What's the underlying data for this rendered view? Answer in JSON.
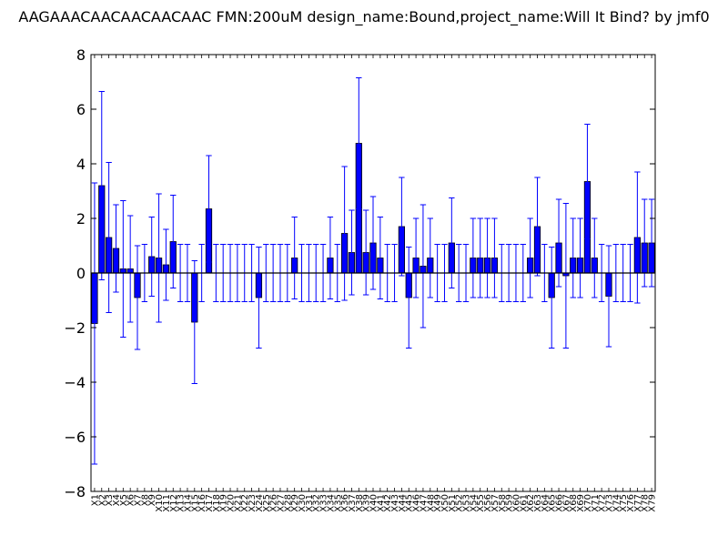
{
  "chart_data": {
    "type": "bar",
    "title": "AAGAAACAACAACAACAAC  FMN:200uM  design_name:Bound,project_name:Will It Bind? by jmf0",
    "xlabel": "",
    "ylabel": "",
    "ylim": [
      -8,
      8
    ],
    "yticks": [
      "8",
      "6",
      "4",
      "2",
      "0",
      "−2",
      "−4",
      "−6",
      "−8"
    ],
    "grid": false,
    "categories": [
      "X1",
      "X2",
      "X3",
      "X4",
      "X5",
      "X6",
      "X7",
      "X8",
      "X9",
      "X10",
      "X11",
      "X12",
      "X13",
      "X14",
      "X15",
      "X16",
      "X17",
      "X18",
      "X19",
      "X20",
      "X21",
      "X22",
      "X23",
      "X24",
      "X25",
      "X26",
      "X27",
      "X28",
      "X29",
      "X30",
      "X31",
      "X32",
      "X33",
      "X34",
      "X35",
      "X36",
      "X37",
      "X38",
      "X39",
      "X40",
      "X41",
      "X42",
      "X43",
      "X44",
      "X45",
      "X46",
      "X47",
      "X48",
      "X49",
      "X50",
      "X51",
      "X52",
      "X53",
      "X54",
      "X55",
      "X56",
      "X57",
      "X58",
      "X59",
      "X60",
      "X61",
      "X62",
      "X63",
      "X64",
      "X65",
      "X66",
      "X67",
      "X68",
      "X69",
      "X70",
      "X71",
      "X72",
      "X73",
      "X74",
      "X75",
      "X76",
      "X77",
      "X78",
      "X79"
    ],
    "values": [
      -1.85,
      3.2,
      1.3,
      0.9,
      0.15,
      0.15,
      -0.9,
      0,
      0.6,
      0.55,
      0.3,
      1.15,
      0,
      0,
      -1.8,
      0,
      2.35,
      0,
      0,
      0,
      0,
      0,
      0,
      -0.9,
      0,
      0,
      0,
      0,
      0.55,
      0,
      0,
      0,
      0,
      0.55,
      0,
      1.45,
      0.75,
      4.75,
      0.75,
      1.1,
      0.55,
      0,
      0,
      1.7,
      -0.9,
      0.55,
      0.25,
      0.55,
      0,
      0,
      1.1,
      0,
      0,
      0.55,
      0.55,
      0.55,
      0.55,
      0,
      0,
      0,
      0,
      0.55,
      1.7,
      0,
      -0.9,
      1.1,
      -0.1,
      0.55,
      0.55,
      3.35,
      0.55,
      0,
      -0.85,
      0,
      0,
      0,
      1.3,
      1.1,
      1.1
    ],
    "errors": [
      5.15,
      3.45,
      2.75,
      1.6,
      2.5,
      1.95,
      1.9,
      1.05,
      1.45,
      2.35,
      1.3,
      1.7,
      1.05,
      1.05,
      2.25,
      1.05,
      1.95,
      1.05,
      1.05,
      1.05,
      1.05,
      1.05,
      1.05,
      1.85,
      1.05,
      1.05,
      1.05,
      1.05,
      1.5,
      1.05,
      1.05,
      1.05,
      1.05,
      1.5,
      1.05,
      2.45,
      1.55,
      2.4,
      1.55,
      1.7,
      1.5,
      1.05,
      1.05,
      1.8,
      1.85,
      1.45,
      2.25,
      1.45,
      1.05,
      1.05,
      1.65,
      1.05,
      1.05,
      1.45,
      1.45,
      1.45,
      1.45,
      1.05,
      1.05,
      1.05,
      1.05,
      1.45,
      1.8,
      1.05,
      1.85,
      1.6,
      2.65,
      1.45,
      1.45,
      2.1,
      1.45,
      1.05,
      1.85,
      1.05,
      1.05,
      1.05,
      2.4,
      1.6,
      1.6
    ],
    "colors": {
      "bar": "#0000ff",
      "error_bar": "#0000ff",
      "axis": "#000000",
      "zero_line": "#000000"
    }
  }
}
